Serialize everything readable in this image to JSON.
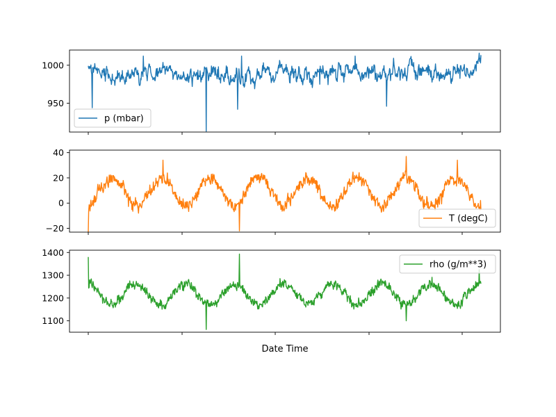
{
  "colors": {
    "pressure": "#1f77b4",
    "temperature": "#ff7f0e",
    "density": "#2ca02c",
    "axes": "#000000",
    "legend_border": "#cccccc",
    "background": "#ffffff"
  },
  "chart_data": [
    {
      "type": "line",
      "legend_placement": "lower-left",
      "grid": false,
      "xlabel": "",
      "ylabel": "",
      "ylim": [
        912,
        1020
      ],
      "yticks": [
        950,
        1000
      ],
      "ytick_labels": [
        "950",
        "1000"
      ],
      "series": [
        {
          "name": "p (mbar)",
          "color": "#1f77b4",
          "baseline": 989,
          "amplitude": 10,
          "spikes": [
            {
              "t": 0.3,
              "value": 913
            },
            {
              "t": 0.38,
              "value": 942
            },
            {
              "t": 0.76,
              "value": 946
            },
            {
              "t": 0.01,
              "value": 944
            },
            {
              "t": 0.59,
              "value": 975
            },
            {
              "t": 0.14,
              "value": 1012
            },
            {
              "t": 0.39,
              "value": 1012
            },
            {
              "t": 0.68,
              "value": 1012
            },
            {
              "t": 0.995,
              "value": 1016
            }
          ]
        }
      ]
    },
    {
      "type": "line",
      "legend_placement": "lower-right",
      "grid": false,
      "xlabel": "",
      "ylabel": "",
      "ylim": [
        -23,
        42
      ],
      "yticks": [
        -20,
        0,
        20,
        40
      ],
      "ytick_labels": [
        "−20",
        "0",
        "20",
        "40"
      ],
      "series": [
        {
          "name": "T (degC)",
          "color": "#ff7f0e",
          "mean": 9,
          "seasonal_amplitude": 11,
          "seasonal_cycles": 8,
          "start_phase": -1.45,
          "daily_amplitude": 7,
          "extremes": [
            {
              "t": 0.0,
              "value": -23
            },
            {
              "t": 0.385,
              "value": -22
            },
            {
              "t": 0.81,
              "value": 37
            },
            {
              "t": 0.19,
              "value": 34
            },
            {
              "t": 0.94,
              "value": 34
            }
          ]
        }
      ]
    },
    {
      "type": "line",
      "legend_placement": "upper-right",
      "grid": false,
      "xlabel": "Date Time",
      "ylabel": "",
      "ylim": [
        1050,
        1410
      ],
      "yticks": [
        1100,
        1200,
        1300,
        1400
      ],
      "ytick_labels": [
        "1100",
        "1200",
        "1300",
        "1400"
      ],
      "xtick_labels": [
        "",
        "",
        "",
        "",
        ""
      ],
      "series": [
        {
          "name": "rho (g/m**3)",
          "color": "#2ca02c",
          "mean": 1217,
          "seasonal_amplitude": 45,
          "seasonal_cycles": 8,
          "start_phase": 1.69,
          "daily_amplitude": 30,
          "extremes": [
            {
              "t": 0.0,
              "value": 1380
            },
            {
              "t": 0.385,
              "value": 1393
            },
            {
              "t": 0.3,
              "value": 1062
            },
            {
              "t": 0.81,
              "value": 1100
            },
            {
              "t": 0.995,
              "value": 1325
            }
          ]
        }
      ]
    }
  ]
}
